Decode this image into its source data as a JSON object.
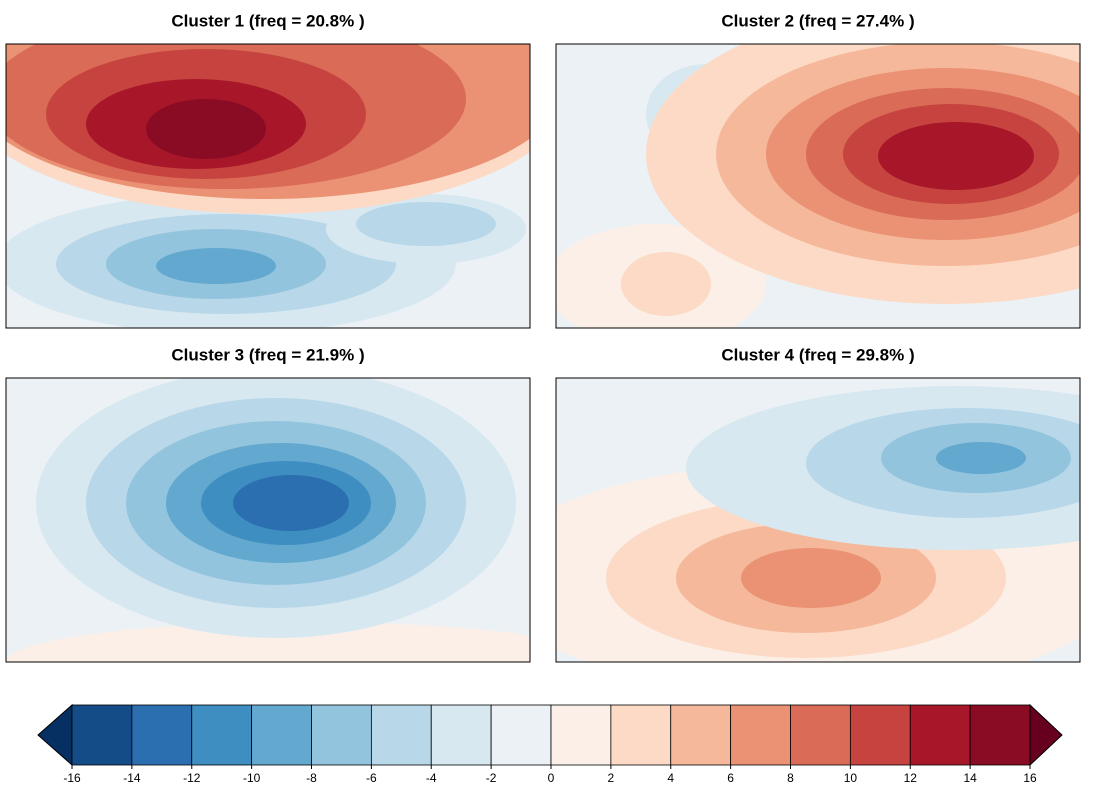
{
  "panels": [
    {
      "title": "Cluster 1 (freq = 20.8% )"
    },
    {
      "title": "Cluster 2 (freq = 27.4% )"
    },
    {
      "title": "Cluster 3 (freq = 21.9% )"
    },
    {
      "title": "Cluster 4 (freq = 29.8% )"
    }
  ],
  "colorbar": {
    "ticks": [
      -16,
      -14,
      -12,
      -10,
      -8,
      -6,
      -4,
      -2,
      0,
      2,
      4,
      6,
      8,
      10,
      12,
      14,
      16
    ],
    "colors": [
      "#053061",
      "#144c88",
      "#2b6fb0",
      "#3f8ec1",
      "#62a8cf",
      "#93c4de",
      "#b8d8e9",
      "#d8e8f1",
      "#ebf1f5",
      "#fbefe8",
      "#fcdac6",
      "#f5b89a",
      "#ea9273",
      "#da6b56",
      "#c6433f",
      "#a81729",
      "#8a0b24",
      "#67001f"
    ]
  }
}
